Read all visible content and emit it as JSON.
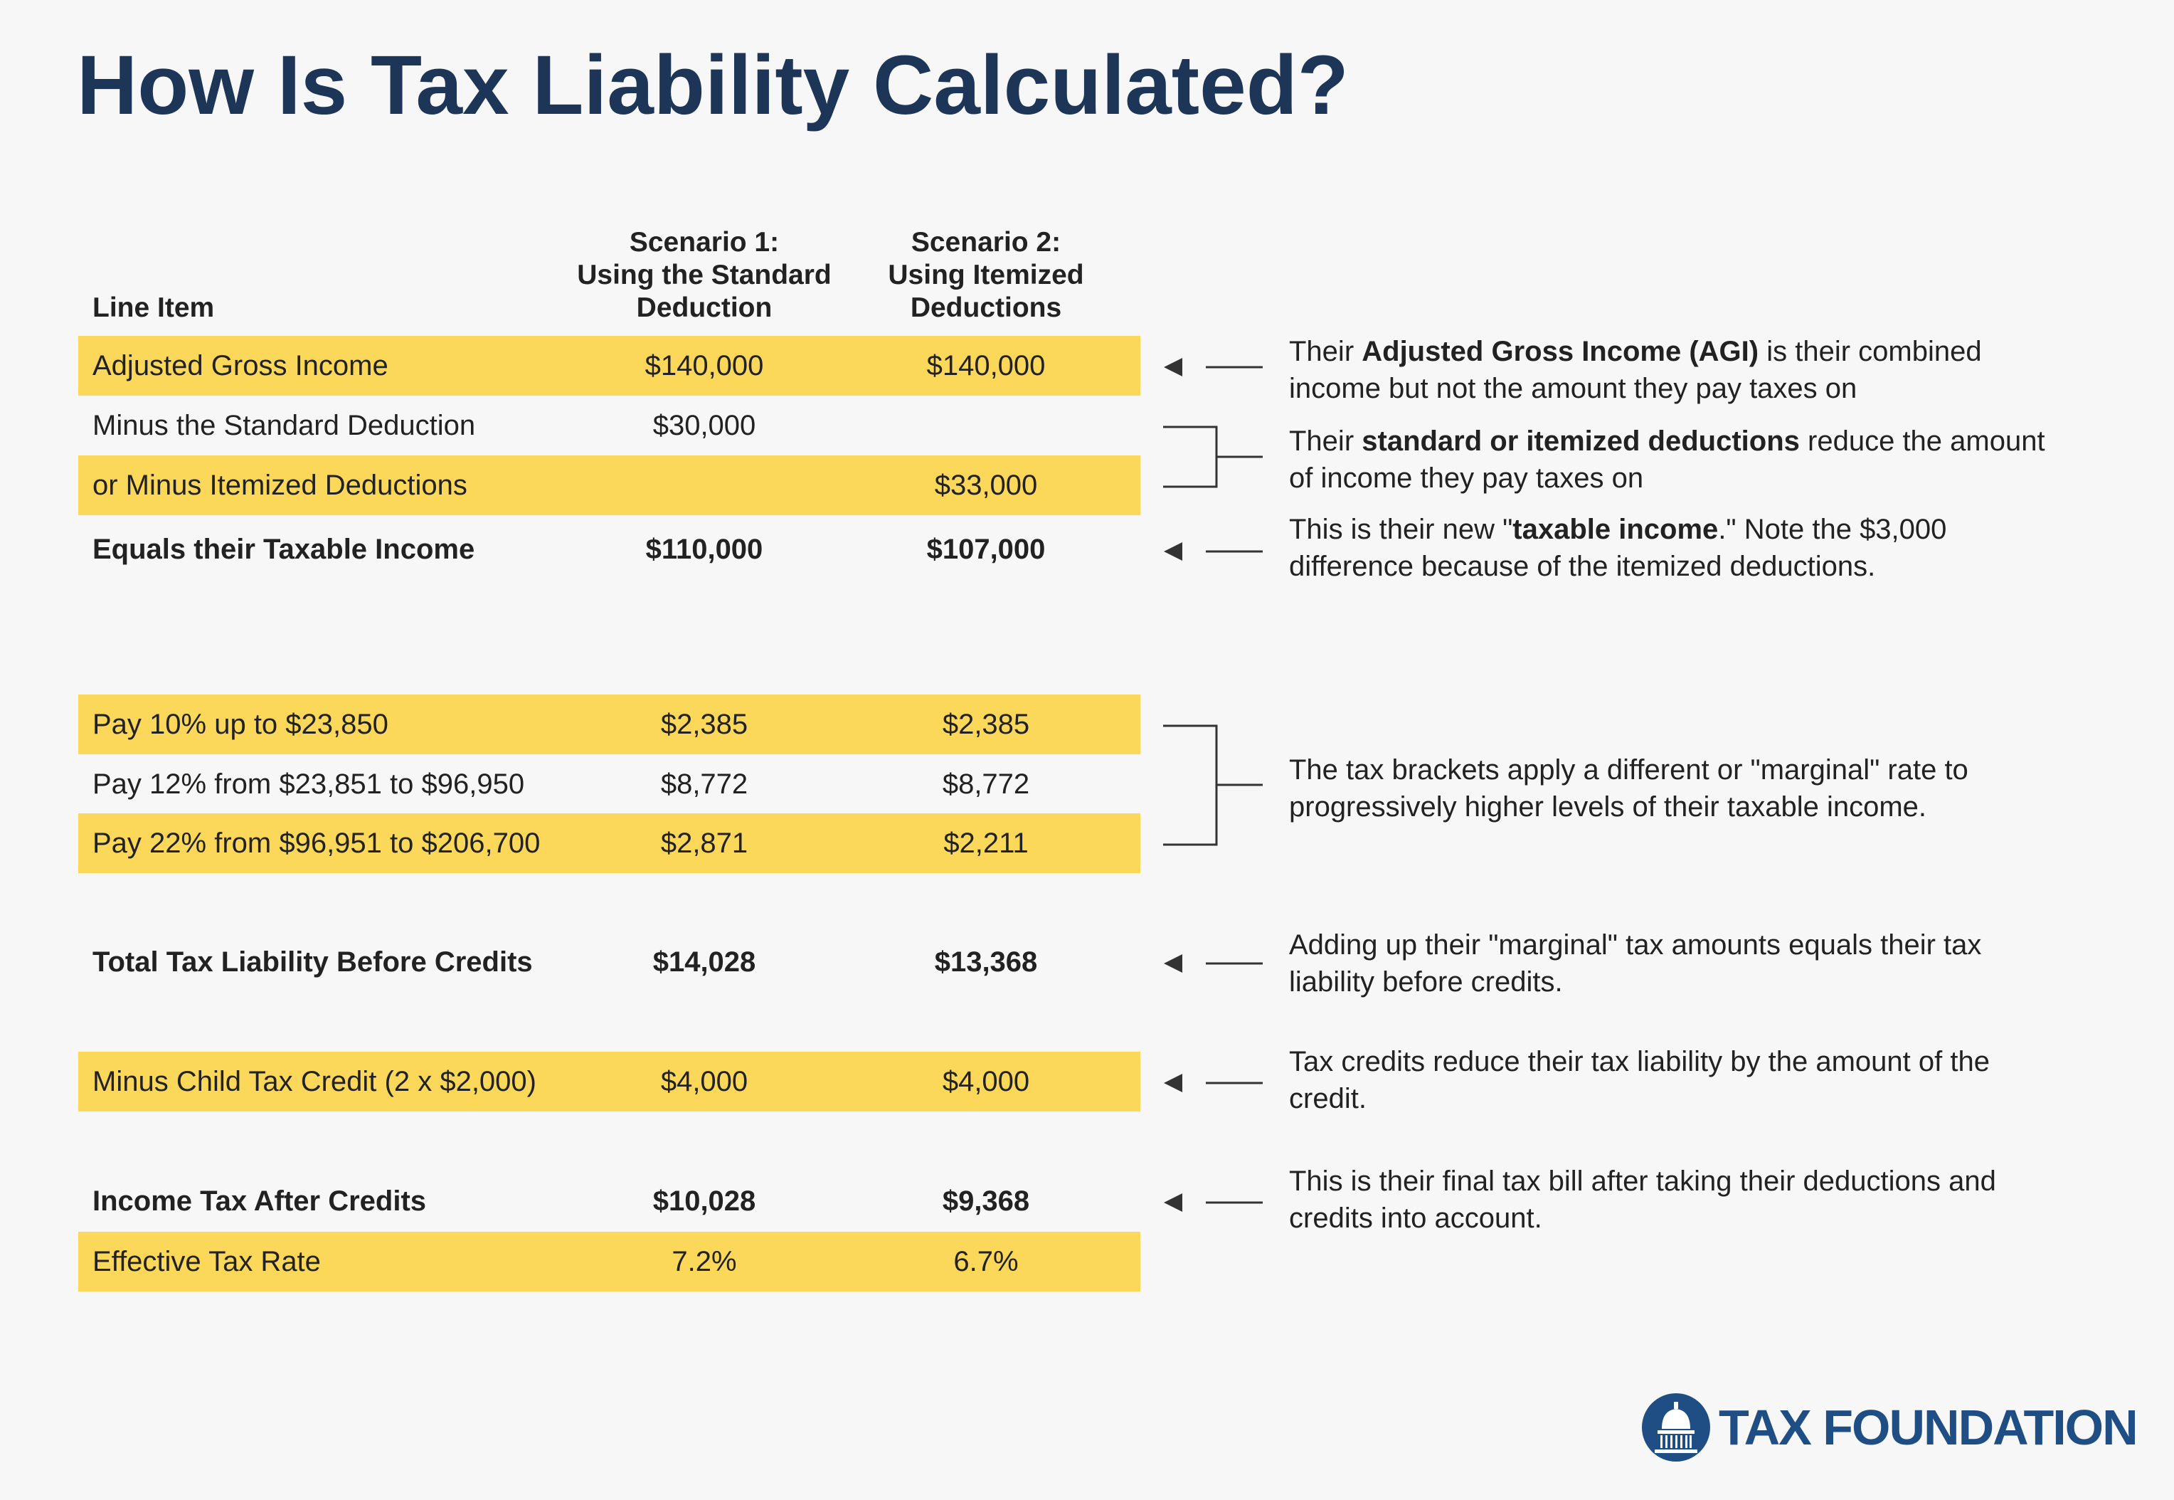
{
  "title": "How Is Tax Liability Calculated?",
  "columns": {
    "line_item": "Line Item",
    "scenario1": [
      "Scenario 1:",
      "Using the Standard",
      "Deduction"
    ],
    "scenario2": [
      "Scenario 2:",
      "Using Itemized",
      "Deductions"
    ]
  },
  "rows": [
    {
      "label": "Adjusted Gross Income",
      "s1": "$140,000",
      "s2": "$140,000"
    },
    {
      "label": "Minus the Standard Deduction",
      "s1": "$30,000",
      "s2": ""
    },
    {
      "label": "or Minus Itemized Deductions",
      "s1": "",
      "s2": "$33,000"
    },
    {
      "label": "Equals their Taxable Income",
      "s1": "$110,000",
      "s2": "$107,000"
    },
    {
      "label": "Pay 10% up to $23,850",
      "s1": "$2,385",
      "s2": "$2,385"
    },
    {
      "label": "Pay 12% from $23,851 to $96,950",
      "s1": "$8,772",
      "s2": "$8,772"
    },
    {
      "label": "Pay 22% from $96,951 to $206,700",
      "s1": "$2,871",
      "s2": "$2,211"
    },
    {
      "label": "Total Tax Liability Before Credits",
      "s1": "$14,028",
      "s2": "$13,368"
    },
    {
      "label": "Minus Child Tax Credit (2 x $2,000)",
      "s1": "$4,000",
      "s2": "$4,000"
    },
    {
      "label": "Income Tax After Credits",
      "s1": "$10,028",
      "s2": "$9,368"
    },
    {
      "label": "Effective Tax Rate",
      "s1": "7.2%",
      "s2": "6.7%"
    }
  ],
  "notes": {
    "agi": {
      "pre": "Their ",
      "bold": "Adjusted Gross Income (AGI)",
      "post": " is their combined income but not the amount they pay taxes on"
    },
    "deductions": {
      "pre": "Their ",
      "bold": "standard or itemized deductions",
      "post": " reduce the amount of income they pay taxes on"
    },
    "taxable": {
      "pre": "This is their new \"",
      "bold": "taxable income",
      "post": ".\" Note the $3,000 difference because of the itemized deductions."
    },
    "brackets": "The tax brackets apply a different or \"marginal\" rate to progressively higher levels of their taxable income.",
    "total": "Adding up their \"marginal\" tax amounts equals their tax liability before credits.",
    "credits": "Tax credits reduce their tax liability by the amount of the credit.",
    "final": "This is their final tax bill after taking their deductions and credits into account."
  },
  "brand": {
    "name": "TAX FOUNDATION",
    "logo_icon": "capitol-dome-icon",
    "color": "#1f4e85"
  },
  "colors": {
    "highlight": "#fcd85a",
    "title": "#1d3556",
    "connector": "#333333"
  }
}
